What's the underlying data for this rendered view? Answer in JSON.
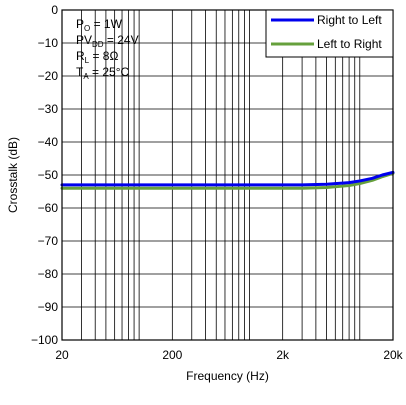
{
  "chart_data": {
    "type": "line",
    "title": "",
    "xlabel": "Frequency (Hz)",
    "ylabel": "Crosstalk (dB)",
    "x_scale": "log",
    "xlim": [
      20,
      20000
    ],
    "ylim": [
      -100,
      0
    ],
    "x_tick_values": [
      20,
      200,
      2000,
      20000
    ],
    "x_tick_labels": [
      "20",
      "200",
      "2k",
      "20k"
    ],
    "y_tick_values": [
      0,
      -10,
      -20,
      -30,
      -40,
      -50,
      -60,
      -70,
      -80,
      -90,
      -100
    ],
    "y_tick_labels": [
      "0",
      "−10",
      "−20",
      "−30",
      "−40",
      "−50",
      "−60",
      "−70",
      "−80",
      "−90",
      "−100"
    ],
    "grid": true,
    "legend_position": "top-right",
    "conditions": {
      "po": {
        "main": "P",
        "sub": "O",
        "rest": " = 1W"
      },
      "pvdd": {
        "main": "PV",
        "sub": "DD",
        "rest": " = 24V"
      },
      "rl": {
        "main": "R",
        "sub": "L",
        "rest": " = 8Ω"
      },
      "ta": {
        "main": "T",
        "sub": "A",
        "rest": " = 25°C"
      }
    },
    "series": [
      {
        "name": "Right to Left",
        "color": "#0000ee",
        "points": [
          [
            20,
            -53.0
          ],
          [
            50,
            -53.0
          ],
          [
            100,
            -53.0
          ],
          [
            200,
            -53.0
          ],
          [
            500,
            -53.0
          ],
          [
            1000,
            -53.0
          ],
          [
            2000,
            -53.0
          ],
          [
            3000,
            -53.0
          ],
          [
            5000,
            -52.8
          ],
          [
            8000,
            -52.3
          ],
          [
            10000,
            -51.8
          ],
          [
            13000,
            -51.0
          ],
          [
            16000,
            -50.0
          ],
          [
            20000,
            -49.2
          ]
        ]
      },
      {
        "name": "Left to Right",
        "color": "#66a03c",
        "points": [
          [
            20,
            -54.0
          ],
          [
            50,
            -54.0
          ],
          [
            100,
            -54.0
          ],
          [
            200,
            -54.0
          ],
          [
            500,
            -54.0
          ],
          [
            1000,
            -54.0
          ],
          [
            2000,
            -54.0
          ],
          [
            3000,
            -54.0
          ],
          [
            5000,
            -53.8
          ],
          [
            8000,
            -53.2
          ],
          [
            10000,
            -52.6
          ],
          [
            13000,
            -51.6
          ],
          [
            16000,
            -50.5
          ],
          [
            20000,
            -49.5
          ]
        ]
      }
    ]
  }
}
